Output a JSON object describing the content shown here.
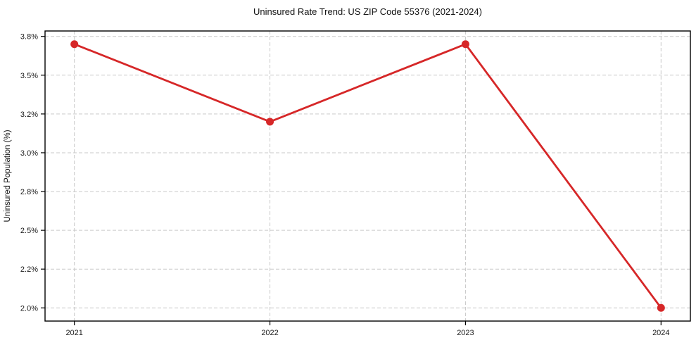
{
  "chart_data": {
    "type": "line",
    "title": "Uninsured Rate Trend: US ZIP Code 55376 (2021-2024)",
    "ylabel": "Uninsured Population (%)",
    "xlabel": "",
    "x": [
      2021,
      2022,
      2023,
      2024
    ],
    "values": [
      3.7,
      3.2,
      3.7,
      2.0
    ],
    "x_ticks": [
      {
        "value": 2021,
        "label": "2021"
      },
      {
        "value": 2022,
        "label": "2022"
      },
      {
        "value": 2023,
        "label": "2023"
      },
      {
        "value": 2024,
        "label": "2024"
      }
    ],
    "y_ticks": [
      {
        "value": 2.0,
        "label": "2.0%"
      },
      {
        "value": 2.25,
        "label": "2.2%"
      },
      {
        "value": 2.5,
        "label": "2.5%"
      },
      {
        "value": 2.75,
        "label": "2.8%"
      },
      {
        "value": 3.0,
        "label": "3.0%"
      },
      {
        "value": 3.25,
        "label": "3.2%"
      },
      {
        "value": 3.5,
        "label": "3.5%"
      },
      {
        "value": 3.75,
        "label": "3.8%"
      }
    ],
    "xlim": [
      2020.85,
      2024.15
    ],
    "ylim": [
      1.915,
      3.785
    ],
    "grid": true,
    "legend": "none",
    "line_color": "#d62728",
    "marker_color": "#d62728",
    "grid_color": "#c9c9c9",
    "spine_color": "#000000",
    "text_color": "#111111",
    "background_color": "#ffffff"
  }
}
